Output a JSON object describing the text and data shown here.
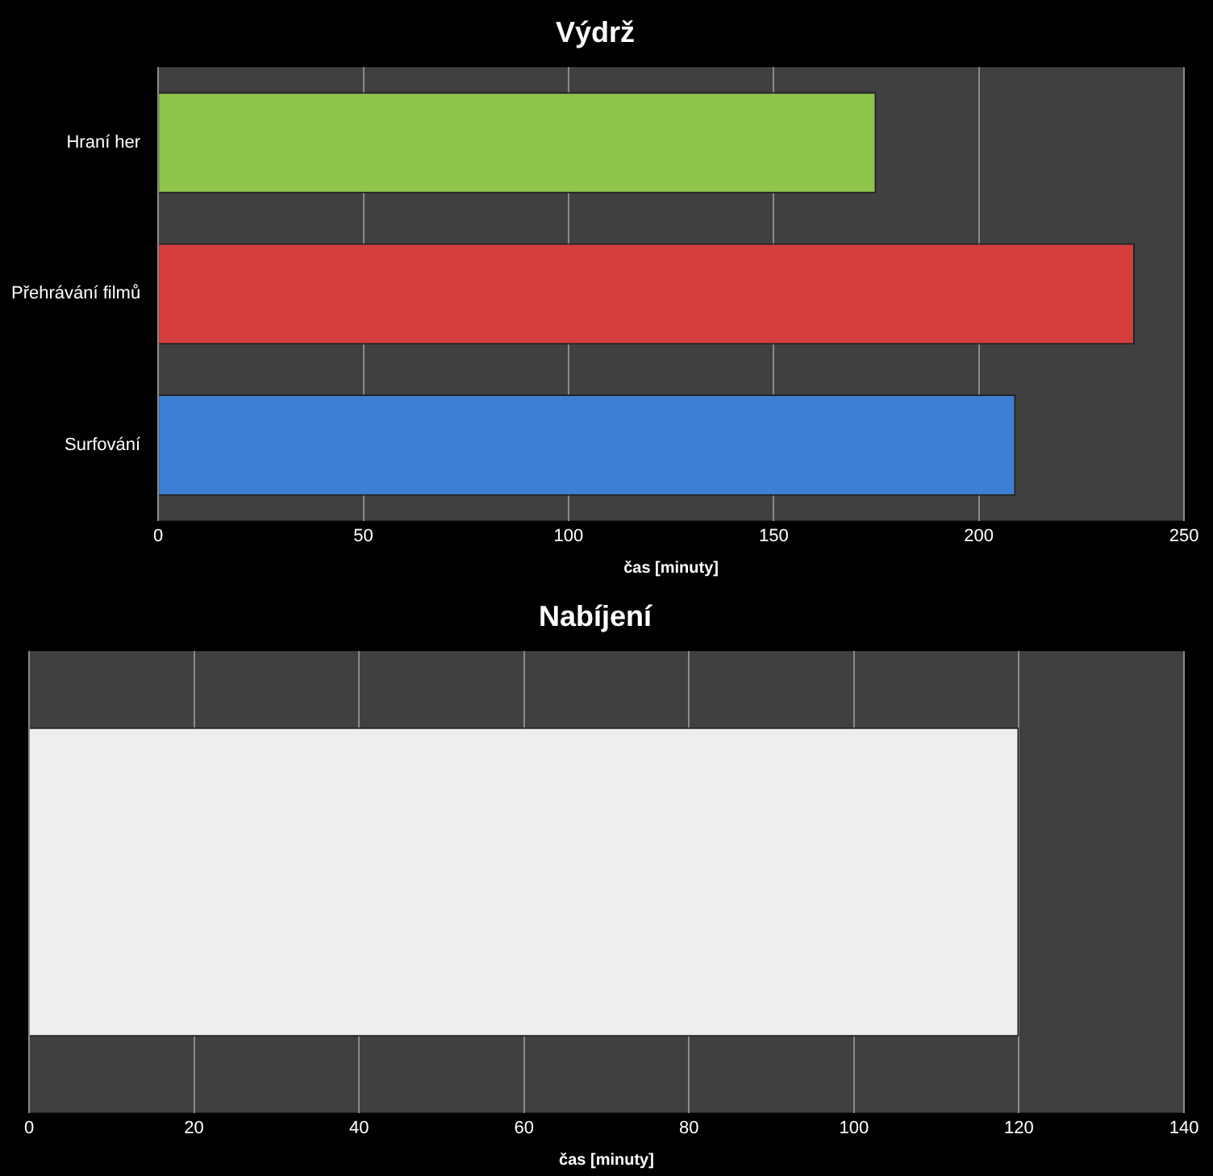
{
  "chart_data": [
    {
      "type": "bar",
      "orientation": "horizontal",
      "title": "Výdrž",
      "xlabel": "čas [minuty]",
      "categories": [
        "Hraní her",
        "Přehrávání filmů",
        "Surfování"
      ],
      "values": [
        175,
        238,
        209
      ],
      "colors": [
        "#8fc44a",
        "#d63e3e",
        "#3d7fd4"
      ],
      "xlim": [
        0,
        250
      ],
      "xticks": [
        0,
        50,
        100,
        150,
        200,
        250
      ],
      "grid": "x",
      "legend": false
    },
    {
      "type": "bar",
      "orientation": "horizontal",
      "title": "Nabíjení",
      "xlabel": "čas [minuty]",
      "categories": [
        null
      ],
      "values": [
        120
      ],
      "colors": [
        "#eeeeee"
      ],
      "xlim": [
        0,
        140
      ],
      "xticks": [
        0,
        20,
        40,
        60,
        80,
        100,
        120,
        140
      ],
      "grid": "x",
      "legend": false
    }
  ]
}
